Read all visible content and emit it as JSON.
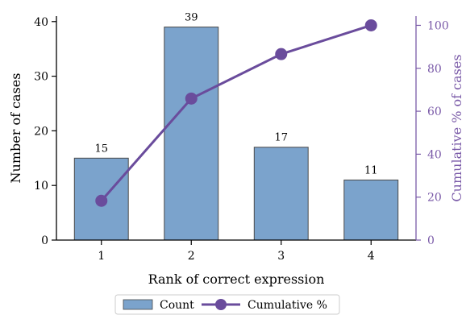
{
  "chart_data": {
    "type": "bar",
    "categories": [
      "1",
      "2",
      "3",
      "4"
    ],
    "xlabel": "Rank of correct expression",
    "ylabel_left": "Number of cases",
    "ylabel_right": "Cumulative % of cases",
    "ylim_left": [
      0,
      41
    ],
    "ylim_right": [
      0,
      104.3
    ],
    "yticks_left": [
      0,
      10,
      20,
      30,
      40
    ],
    "yticks_right": [
      0,
      20,
      40,
      60,
      80,
      100
    ],
    "grid": false,
    "legend_position": "bottom-center",
    "series": [
      {
        "name": "Count",
        "type": "bar",
        "axis": "left",
        "values": [
          15,
          39,
          17,
          11
        ],
        "data_labels": [
          "15",
          "39",
          "17",
          "11"
        ]
      },
      {
        "name": "Cumulative %",
        "type": "line",
        "axis": "right",
        "values": [
          18.3,
          65.9,
          86.6,
          100
        ]
      }
    ],
    "colors": {
      "bar_fill": "#7ba3cc",
      "bar_stroke": "#4a4a4a",
      "line": "#6a4c9c",
      "right_axis": "#7a5aa8",
      "axis": "#000000"
    }
  }
}
